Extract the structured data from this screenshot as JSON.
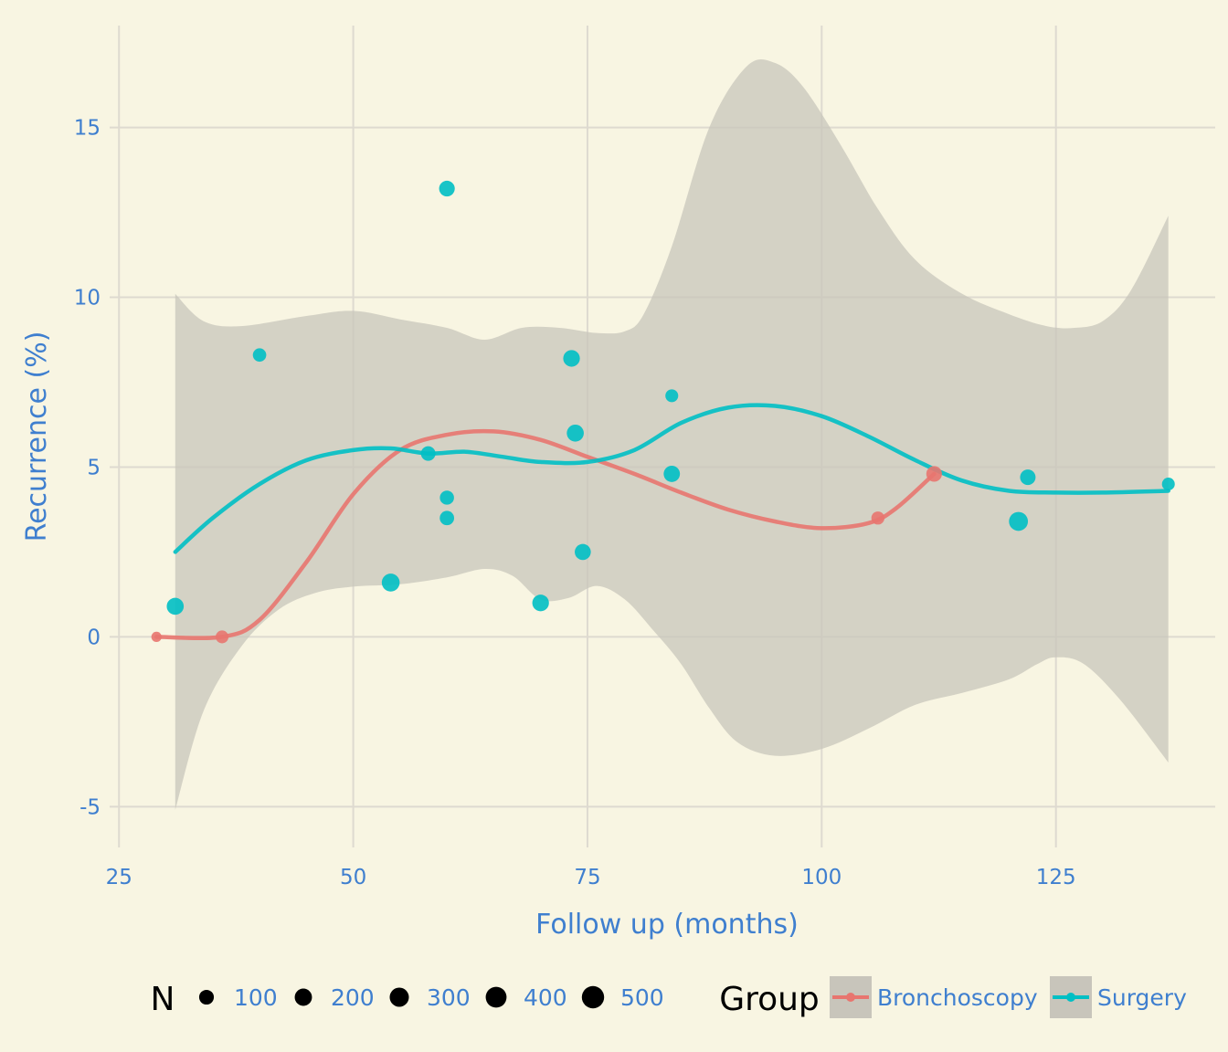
{
  "chart_data": {
    "type": "scatter",
    "xlabel": "Follow up (months)",
    "ylabel": "Recurrence (%)",
    "xlim": [
      24,
      142
    ],
    "ylim": [
      -6.2,
      18.0
    ],
    "x_ticks": [
      25,
      50,
      75,
      100,
      125
    ],
    "y_ticks": [
      -5,
      0,
      5,
      10,
      15
    ],
    "grid": true,
    "legend_placement": "bottom",
    "colors": {
      "background": "#f8f5e2",
      "ribbon": "#c8c5bb",
      "Bronchoscopy": "#e8756f",
      "Surgery": "#00bfc4"
    },
    "size_legend": {
      "title": "N",
      "values": [
        100,
        200,
        300,
        400,
        500
      ]
    },
    "group_legend": {
      "title": "Group",
      "entries": [
        "Bronchoscopy",
        "Surgery"
      ]
    },
    "series": [
      {
        "name": "Bronchoscopy",
        "points": [
          {
            "x": 29,
            "y": 0.0,
            "n": 40
          },
          {
            "x": 36,
            "y": 0.0,
            "n": 110
          },
          {
            "x": 106,
            "y": 3.5,
            "n": 120
          },
          {
            "x": 112,
            "y": 4.8,
            "n": 230
          }
        ],
        "trend": [
          [
            29,
            0
          ],
          [
            36,
            0
          ],
          [
            40,
            0.5
          ],
          [
            45,
            2.2
          ],
          [
            50,
            4.2
          ],
          [
            55,
            5.5
          ],
          [
            60,
            5.95
          ],
          [
            65,
            6.05
          ],
          [
            70,
            5.8
          ],
          [
            75,
            5.3
          ],
          [
            80,
            4.8
          ],
          [
            85,
            4.25
          ],
          [
            90,
            3.75
          ],
          [
            95,
            3.4
          ],
          [
            100,
            3.2
          ],
          [
            105,
            3.35
          ],
          [
            108,
            3.8
          ],
          [
            112,
            4.8
          ]
        ]
      },
      {
        "name": "Surgery",
        "points": [
          {
            "x": 31,
            "y": 0.9,
            "n": 300
          },
          {
            "x": 40,
            "y": 8.3,
            "n": 130
          },
          {
            "x": 54,
            "y": 1.6,
            "n": 350
          },
          {
            "x": 58,
            "y": 5.4,
            "n": 180
          },
          {
            "x": 60,
            "y": 13.2,
            "n": 230
          },
          {
            "x": 60,
            "y": 4.1,
            "n": 160
          },
          {
            "x": 60,
            "y": 3.5,
            "n": 170
          },
          {
            "x": 70,
            "y": 1.0,
            "n": 280
          },
          {
            "x": 73.3,
            "y": 8.2,
            "n": 280
          },
          {
            "x": 73.7,
            "y": 6.0,
            "n": 300
          },
          {
            "x": 74.5,
            "y": 2.5,
            "n": 250
          },
          {
            "x": 84,
            "y": 7.1,
            "n": 110
          },
          {
            "x": 84,
            "y": 4.8,
            "n": 260
          },
          {
            "x": 121,
            "y": 3.4,
            "n": 420
          },
          {
            "x": 122,
            "y": 4.7,
            "n": 220
          },
          {
            "x": 137,
            "y": 4.5,
            "n": 110
          }
        ],
        "trend": [
          [
            31,
            2.5
          ],
          [
            35,
            3.5
          ],
          [
            40,
            4.5
          ],
          [
            45,
            5.2
          ],
          [
            50,
            5.5
          ],
          [
            54,
            5.55
          ],
          [
            58,
            5.4
          ],
          [
            62,
            5.45
          ],
          [
            66,
            5.3
          ],
          [
            70,
            5.15
          ],
          [
            75,
            5.15
          ],
          [
            80,
            5.5
          ],
          [
            85,
            6.3
          ],
          [
            90,
            6.75
          ],
          [
            95,
            6.8
          ],
          [
            100,
            6.5
          ],
          [
            105,
            5.9
          ],
          [
            110,
            5.2
          ],
          [
            115,
            4.6
          ],
          [
            120,
            4.3
          ],
          [
            125,
            4.25
          ],
          [
            130,
            4.25
          ],
          [
            137,
            4.3
          ]
        ],
        "ribbon_upper": [
          [
            31,
            10.1
          ],
          [
            34,
            9.3
          ],
          [
            38,
            9.15
          ],
          [
            45,
            9.45
          ],
          [
            50,
            9.6
          ],
          [
            55,
            9.35
          ],
          [
            60,
            9.1
          ],
          [
            64,
            8.75
          ],
          [
            68,
            9.1
          ],
          [
            72,
            9.1
          ],
          [
            76,
            8.95
          ],
          [
            79,
            9.0
          ],
          [
            81,
            9.5
          ],
          [
            84,
            11.5
          ],
          [
            88,
            15.0
          ],
          [
            92,
            16.8
          ],
          [
            95,
            16.9
          ],
          [
            98,
            16.2
          ],
          [
            102,
            14.5
          ],
          [
            106,
            12.6
          ],
          [
            110,
            11.1
          ],
          [
            115,
            10.1
          ],
          [
            120,
            9.5
          ],
          [
            124,
            9.15
          ],
          [
            127,
            9.1
          ],
          [
            130,
            9.3
          ],
          [
            133,
            10.2
          ],
          [
            137,
            12.4
          ]
        ],
        "ribbon_lower": [
          [
            31,
            -5.1
          ],
          [
            34,
            -2.2
          ],
          [
            38,
            -0.3
          ],
          [
            42,
            0.8
          ],
          [
            46,
            1.3
          ],
          [
            50,
            1.48
          ],
          [
            55,
            1.55
          ],
          [
            60,
            1.75
          ],
          [
            64,
            2.0
          ],
          [
            67,
            1.8
          ],
          [
            70,
            1.1
          ],
          [
            73,
            1.15
          ],
          [
            76,
            1.5
          ],
          [
            79,
            1.1
          ],
          [
            82,
            0.2
          ],
          [
            85,
            -0.8
          ],
          [
            88,
            -2.1
          ],
          [
            91,
            -3.1
          ],
          [
            95,
            -3.5
          ],
          [
            100,
            -3.3
          ],
          [
            105,
            -2.7
          ],
          [
            110,
            -2.0
          ],
          [
            115,
            -1.65
          ],
          [
            120,
            -1.25
          ],
          [
            123,
            -0.8
          ],
          [
            125,
            -0.6
          ],
          [
            128,
            -0.8
          ],
          [
            132,
            -1.9
          ],
          [
            137,
            -3.7
          ]
        ]
      }
    ]
  }
}
